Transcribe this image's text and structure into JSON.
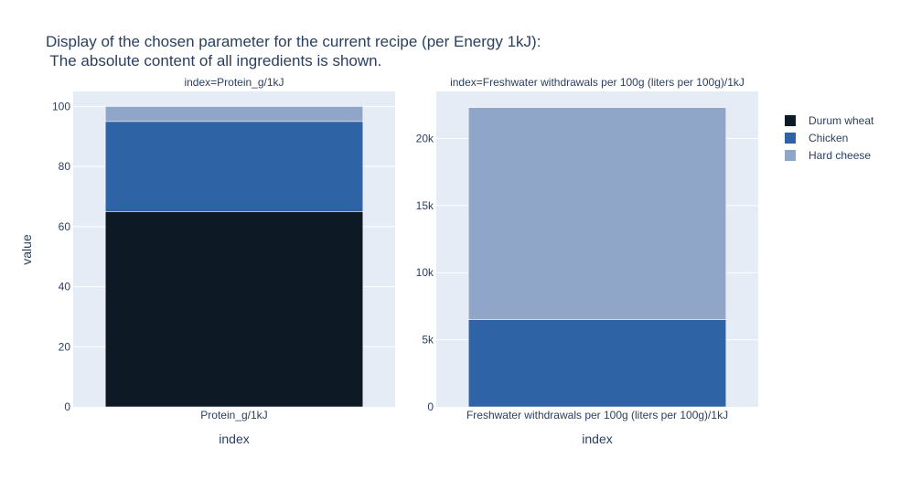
{
  "chart_data": {
    "type": "bar",
    "title_line1": "Display of the chosen parameter for the current recipe (per Energy 1kJ):",
    "title_line2": " The absolute content of all ingredients is shown.",
    "ylabel": "value",
    "legend_position": "top-right",
    "grid": true,
    "colors": {
      "plot_bg": "#e5ecf6",
      "grid": "#ffffff",
      "text": "#2a3f5f"
    },
    "series": [
      {
        "name": "Durum wheat",
        "color": "#0d1a26"
      },
      {
        "name": "Chicken",
        "color": "#2e63a5"
      },
      {
        "name": "Hard cheese",
        "color": "#90a6c9"
      }
    ],
    "panels": [
      {
        "subtitle": "index=Protein_g/1kJ",
        "category": "Protein_g/1kJ",
        "xlabel": "index",
        "ylim": [
          0,
          105
        ],
        "yticks": [
          0,
          20,
          40,
          60,
          80,
          100
        ],
        "ytick_labels": [
          "0",
          "20",
          "40",
          "60",
          "80",
          "100"
        ],
        "values": [
          65,
          30,
          5
        ]
      },
      {
        "subtitle": "index=Freshwater withdrawals per 100g (liters per 100g)/1kJ",
        "category": "Freshwater withdrawals per 100g (liters per 100g)/1kJ",
        "xlabel": "index",
        "ylim": [
          0,
          23500
        ],
        "yticks": [
          0,
          5000,
          10000,
          15000,
          20000
        ],
        "ytick_labels": [
          "0",
          "5k",
          "10k",
          "15k",
          "20k"
        ],
        "values": [
          0,
          6500,
          15800
        ]
      }
    ]
  }
}
